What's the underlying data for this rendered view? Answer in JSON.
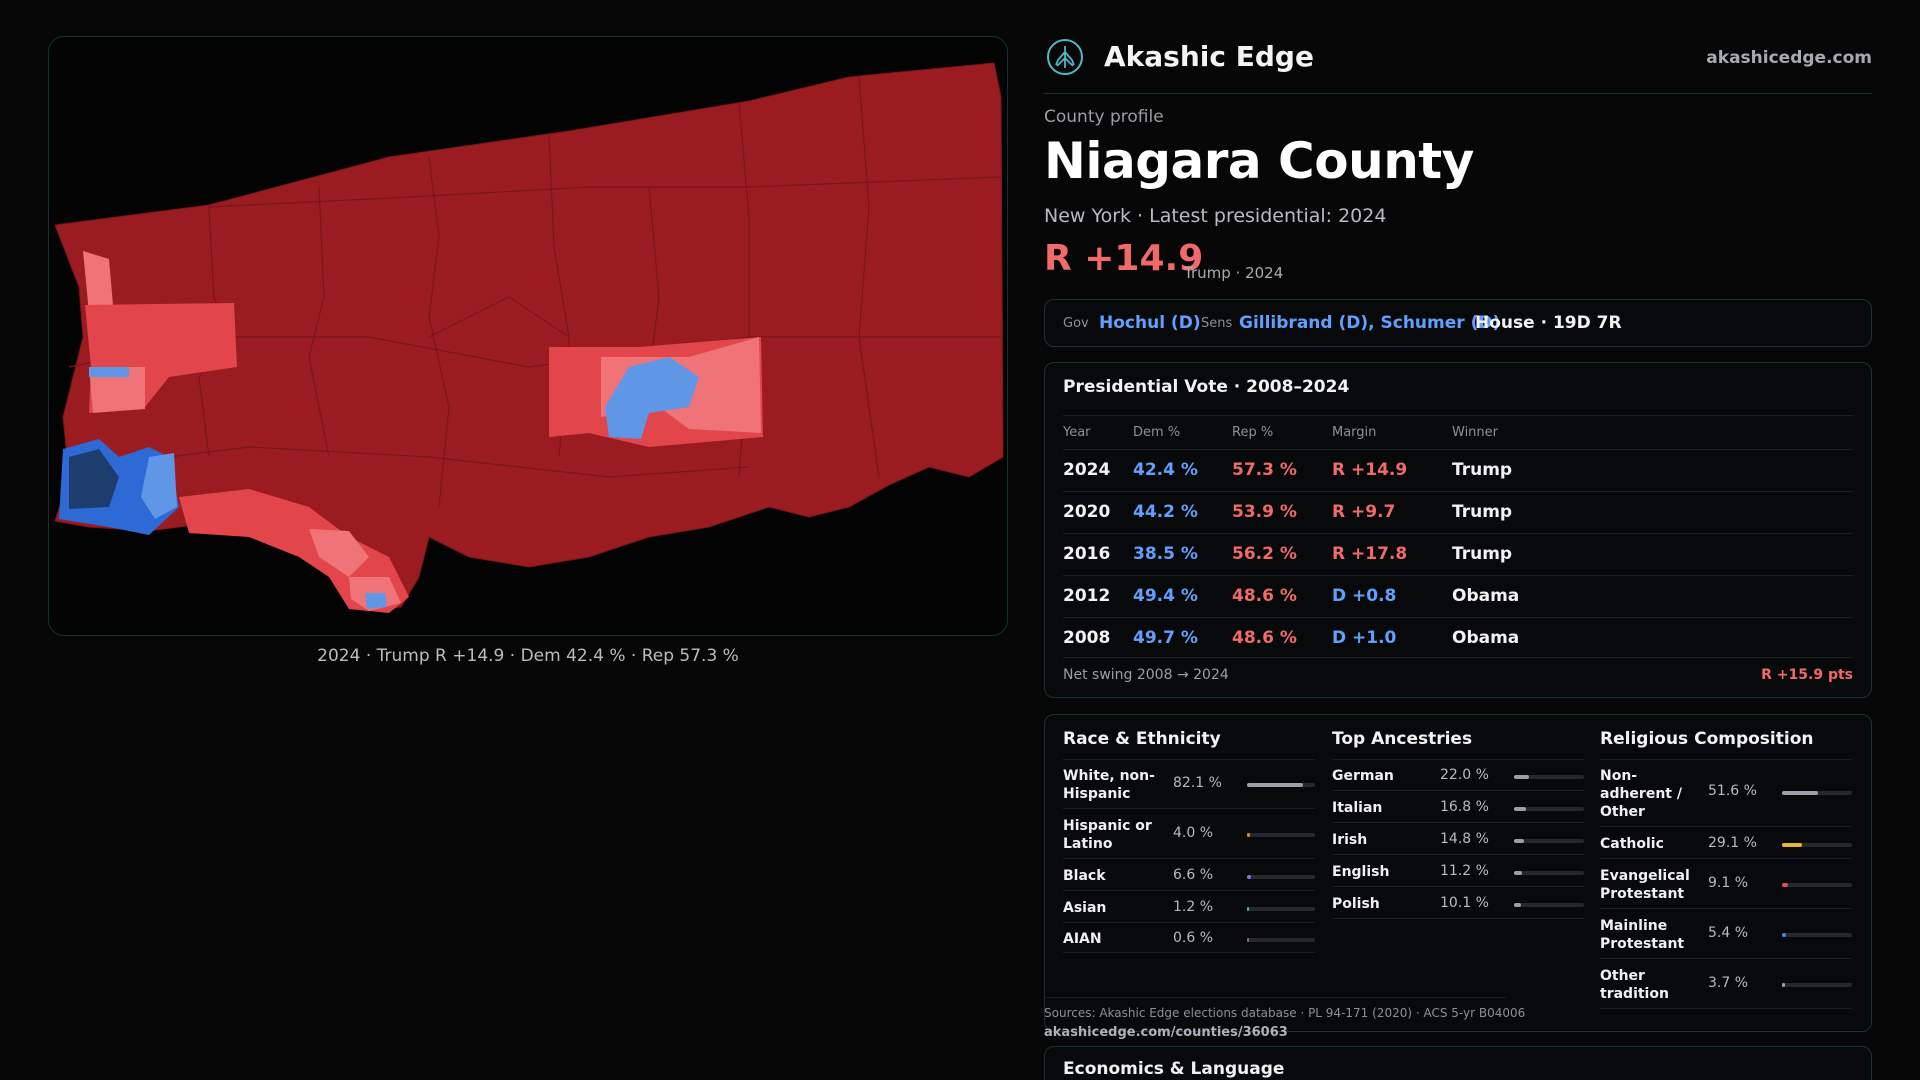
{
  "brand": {
    "name": "Akashic Edge",
    "url": "akashicedge.com",
    "logo_icon": "tree-logo-icon"
  },
  "profile": {
    "kicker": "County profile",
    "title": "Niagara County",
    "subtitle": "New York · Latest presidential: 2024",
    "headline_margin": "R +14.9",
    "headline_note": "Trump · 2024"
  },
  "officials": {
    "gov_label": "Gov",
    "gov_value": "Hochul (D)",
    "sens_label": "Sens",
    "sens_value": "Gillibrand (D), Schumer (D)",
    "house_value": "House · 19D 7R"
  },
  "map": {
    "caption": "2024 · Trump R +14.9 · Dem 42.4 % · Rep 57.3 %",
    "colors": {
      "deep_red": "#9b1c20",
      "red": "#e2454a",
      "light_red": "#ef7377",
      "light_blue": "#5f96e6",
      "blue": "#2e6ad6",
      "dark_blue": "#1c3d6e"
    }
  },
  "vote_table": {
    "title": "Presidential Vote · 2008–2024",
    "headers": {
      "year": "Year",
      "dem": "Dem %",
      "rep": "Rep %",
      "margin": "Margin",
      "winner": "Winner"
    },
    "rows": [
      {
        "year": "2024",
        "dem": "42.4 %",
        "rep": "57.3 %",
        "margin": "R +14.9",
        "party": "R",
        "winner": "Trump"
      },
      {
        "year": "2020",
        "dem": "44.2 %",
        "rep": "53.9 %",
        "margin": "R +9.7",
        "party": "R",
        "winner": "Trump"
      },
      {
        "year": "2016",
        "dem": "38.5 %",
        "rep": "56.2 %",
        "margin": "R +17.8",
        "party": "R",
        "winner": "Trump"
      },
      {
        "year": "2012",
        "dem": "49.4 %",
        "rep": "48.6 %",
        "margin": "D +0.8",
        "party": "D",
        "winner": "Obama"
      },
      {
        "year": "2008",
        "dem": "49.7 %",
        "rep": "48.6 %",
        "margin": "D +1.0",
        "party": "D",
        "winner": "Obama"
      }
    ],
    "footer_label": "Net swing 2008 → 2024",
    "footer_value": "R +15.9 pts"
  },
  "race": {
    "title": "Race & Ethnicity",
    "rows": [
      {
        "name": "White, non-Hispanic",
        "pct": "82.1 %",
        "value": 82.1,
        "color": "#9aa0a8"
      },
      {
        "name": "Hispanic or Latino",
        "pct": "4.0 %",
        "value": 4.0,
        "color": "#e08a2c"
      },
      {
        "name": "Black",
        "pct": "6.6 %",
        "value": 6.6,
        "color": "#8a6be0"
      },
      {
        "name": "Asian",
        "pct": "1.2 %",
        "value": 1.2,
        "color": "#4fb39a"
      },
      {
        "name": "AIAN",
        "pct": "0.6 %",
        "value": 0.6,
        "color": "#b06060"
      }
    ]
  },
  "ancestry": {
    "title": "Top Ancestries",
    "rows": [
      {
        "name": "German",
        "pct": "22.0 %",
        "value": 22.0,
        "color": "#9aa0a8"
      },
      {
        "name": "Italian",
        "pct": "16.8 %",
        "value": 16.8,
        "color": "#9aa0a8"
      },
      {
        "name": "Irish",
        "pct": "14.8 %",
        "value": 14.8,
        "color": "#9aa0a8"
      },
      {
        "name": "English",
        "pct": "11.2 %",
        "value": 11.2,
        "color": "#9aa0a8"
      },
      {
        "name": "Polish",
        "pct": "10.1 %",
        "value": 10.1,
        "color": "#9aa0a8"
      }
    ]
  },
  "religion": {
    "title": "Religious Composition",
    "rows": [
      {
        "name": "Non-adherent / Other",
        "pct": "51.6 %",
        "value": 51.6,
        "color": "#9aa0a8"
      },
      {
        "name": "Catholic",
        "pct": "29.1 %",
        "value": 29.1,
        "color": "#e8b630"
      },
      {
        "name": "Evangelical Protestant",
        "pct": "9.1 %",
        "value": 9.1,
        "color": "#e0505a"
      },
      {
        "name": "Mainline Protestant",
        "pct": "5.4 %",
        "value": 5.4,
        "color": "#4a86e0"
      },
      {
        "name": "Other tradition",
        "pct": "3.7 %",
        "value": 3.7,
        "color": "#9aa0a8"
      }
    ]
  },
  "sources": {
    "text": "Sources: Akashic Edge elections database · PL 94-171 (2020) · ACS 5-yr B04006",
    "url": "akashicedge.com/counties/36063"
  },
  "econ": {
    "title": "Economics & Language"
  }
}
